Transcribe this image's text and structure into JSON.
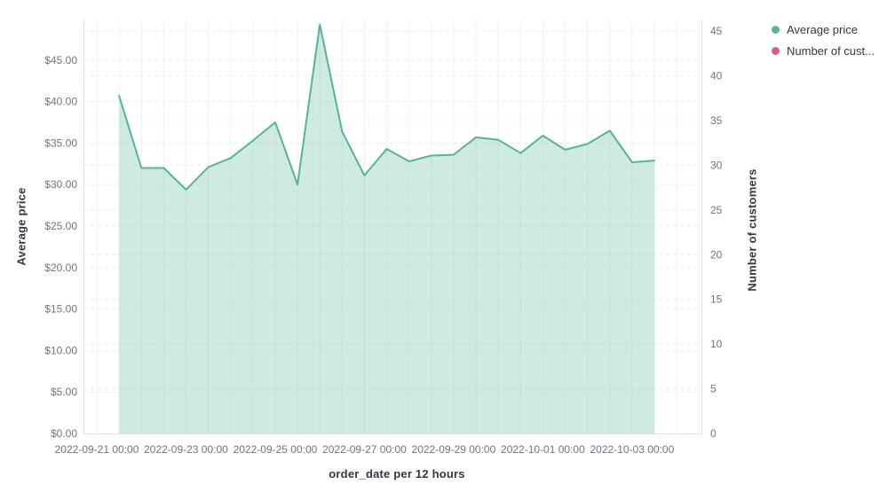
{
  "legend": {
    "items": [
      {
        "label": "Average price",
        "color": "#54B399"
      },
      {
        "label": "Number of cust...",
        "color": "#D36086"
      }
    ]
  },
  "chart_data": {
    "type": "area",
    "title": "",
    "xlabel": "order_date per 12 hours",
    "ylabel_left": "Average price",
    "ylabel_right": "Number of customers",
    "grid": true,
    "legend_position": "top-right",
    "axes": {
      "left": {
        "title": "Average price",
        "max": 49.9,
        "tick_values": [
          0,
          5,
          10,
          15,
          20,
          25,
          30,
          35,
          40,
          45
        ],
        "tick_labels": [
          "$0.00",
          "$5.00",
          "$10.00",
          "$15.00",
          "$20.00",
          "$25.00",
          "$30.00",
          "$35.00",
          "$40.00",
          "$45.00"
        ]
      },
      "right": {
        "title": "Number of customers",
        "max": 46.3,
        "tick_values": [
          0,
          5,
          10,
          15,
          20,
          25,
          30,
          35,
          40,
          45
        ],
        "tick_labels": [
          "0",
          "5",
          "10",
          "15",
          "20",
          "25",
          "30",
          "35",
          "40",
          "45"
        ]
      },
      "x": {
        "title": "order_date per 12 hours",
        "interval": "12 hours",
        "tick_gridline_indices": [
          0,
          4,
          8,
          12,
          16,
          20,
          24
        ],
        "tick_labels": [
          "2022-09-21 00:00",
          "2022-09-23 00:00",
          "2022-09-25 00:00",
          "2022-09-27 00:00",
          "2022-09-29 00:00",
          "2022-10-01 00:00",
          "2022-10-03 00:00"
        ]
      }
    },
    "series": [
      {
        "name": "Average price",
        "type": "area",
        "axis": "left",
        "color": "#54B399",
        "area_opacity": 0.28,
        "x": [
          "2022-09-21 12:00",
          "2022-09-22 00:00",
          "2022-09-22 12:00",
          "2022-09-23 00:00",
          "2022-09-23 12:00",
          "2022-09-24 00:00",
          "2022-09-24 12:00",
          "2022-09-25 00:00",
          "2022-09-25 12:00",
          "2022-09-26 00:00",
          "2022-09-26 12:00",
          "2022-09-27 00:00",
          "2022-09-27 12:00",
          "2022-09-28 00:00",
          "2022-09-28 12:00",
          "2022-09-29 00:00",
          "2022-09-29 12:00",
          "2022-09-30 00:00",
          "2022-09-30 12:00",
          "2022-10-01 00:00",
          "2022-10-01 12:00",
          "2022-10-02 00:00",
          "2022-10-02 12:00",
          "2022-10-03 00:00",
          "2022-10-03 12:00"
        ],
        "values": [
          40.7,
          32.0,
          32.0,
          29.4,
          32.1,
          33.2,
          35.3,
          37.5,
          30.0,
          49.3,
          36.4,
          31.1,
          34.3,
          32.8,
          33.5,
          33.6,
          35.7,
          35.4,
          33.8,
          35.9,
          34.2,
          34.9,
          36.5,
          32.7,
          32.9
        ]
      },
      {
        "name": "Number of customers",
        "type": "line",
        "axis": "right",
        "color": "#D36086",
        "values": []
      }
    ]
  }
}
